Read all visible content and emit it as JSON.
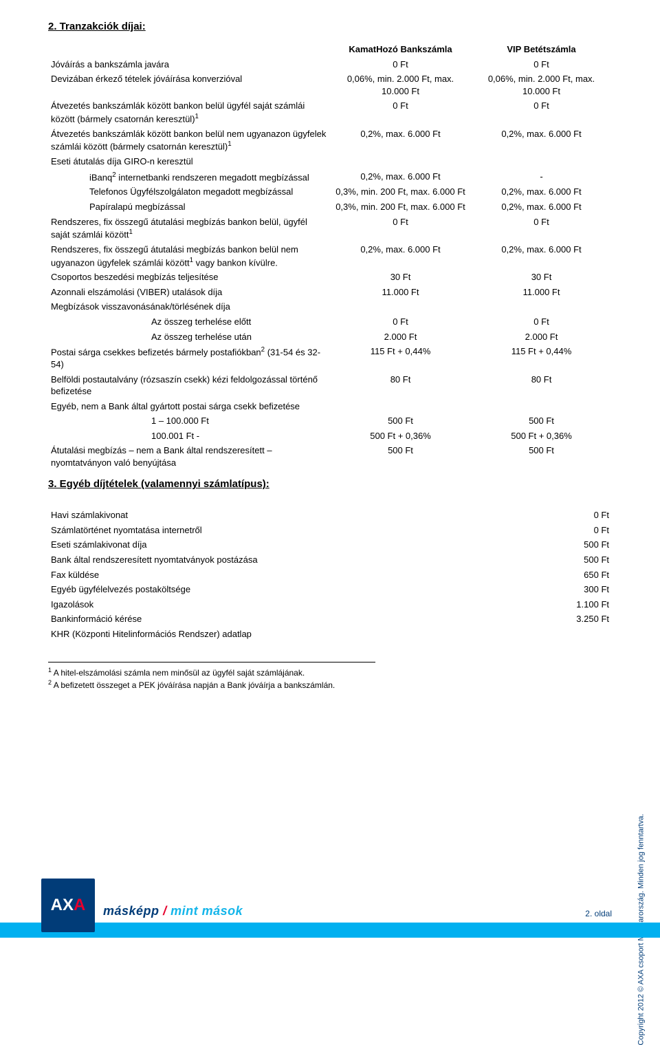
{
  "section2": {
    "title": "2. Tranzakciók díjai:",
    "headers": {
      "col2": "KamatHozó Bankszámla",
      "col3": "VIP Betétszámla"
    },
    "rows": [
      {
        "label": "Jóváírás a bankszámla javára",
        "c2": "0 Ft",
        "c3": "0 Ft"
      },
      {
        "label": "Devizában érkező tételek jóváírása konverzióval",
        "c2": "0,06%, min. 2.000 Ft, max. 10.000 Ft",
        "c3": "0,06%, min. 2.000 Ft, max. 10.000 Ft"
      },
      {
        "label_html": "Átvezetés bankszámlák között bankon belül ügyfél saját számlái között (bármely csatornán keresztül)<span class='sup'>1</span>",
        "c2": "0 Ft",
        "c3": "0 Ft"
      },
      {
        "label_html": "Átvezetés bankszámlák között bankon belül nem ugyanazon ügyfelek számlái között (bármely csatornán keresztül)<span class='sup'>1</span>",
        "c2": "0,2%, max. 6.000 Ft",
        "c3": "0,2%, max. 6.000 Ft"
      },
      {
        "label": "Eseti átutalás díja GIRO-n keresztül",
        "c2": "",
        "c3": ""
      },
      {
        "indent": 1,
        "label_html": "iBanq<span class='sup'>2</span> internetbanki rendszeren megadott megbízással",
        "c2": "0,2%, max. 6.000 Ft",
        "c3": "-"
      },
      {
        "indent": 1,
        "label": "Telefonos Ügyfélszolgálaton megadott megbízással",
        "c2": "0,3%, min. 200 Ft, max. 6.000 Ft",
        "c3": "0,2%, max. 6.000 Ft"
      },
      {
        "indent": 1,
        "label": "Papíralapú megbízással",
        "c2": "0,3%, min. 200 Ft, max. 6.000 Ft",
        "c3": "0,2%, max. 6.000 Ft"
      },
      {
        "label_html": "Rendszeres, fix összegű átutalási megbízás bankon belül, ügyfél saját számlái között<span class='sup'>1</span>",
        "c2": "0 Ft",
        "c3": "0 Ft"
      },
      {
        "label_html": "Rendszeres, fix összegű átutalási megbízás bankon belül nem ugyanazon ügyfelek számlái között<span class='sup'>1</span> vagy bankon kívülre.",
        "c2": "0,2%, max. 6.000 Ft",
        "c3": "0,2%, max. 6.000 Ft"
      },
      {
        "label": "Csoportos beszedési megbízás teljesítése",
        "c2": "30 Ft",
        "c3": "30 Ft"
      },
      {
        "label": "Azonnali elszámolási (VIBER) utalások díja",
        "c2": "11.000 Ft",
        "c3": "11.000 Ft"
      },
      {
        "label": "Megbízások visszavonásának/törlésének díja",
        "c2": "",
        "c3": ""
      },
      {
        "indent": 2,
        "label": "Az összeg terhelése előtt",
        "c2": "0 Ft",
        "c3": "0 Ft"
      },
      {
        "indent": 2,
        "label": "Az összeg terhelése után",
        "c2": "2.000 Ft",
        "c3": "2.000 Ft"
      },
      {
        "label_html": "Postai sárga csekkes befizetés bármely postafiókban<span class='sup'>2</span> (31-54 és 32-54)",
        "c2": "115 Ft + 0,44%",
        "c3": "115 Ft + 0,44%"
      },
      {
        "label": "Belföldi postautalvány (rózsaszín csekk) kézi feldolgozással történő befizetése",
        "c2": "80 Ft",
        "c3": "80 Ft"
      },
      {
        "label": "Egyéb, nem a Bank által gyártott postai sárga csekk befizetése",
        "c2": "",
        "c3": ""
      },
      {
        "indent": 2,
        "label": "1 – 100.000 Ft",
        "c2": "500 Ft",
        "c3": "500 Ft"
      },
      {
        "indent": 2,
        "label": "100.001 Ft -",
        "c2": "500 Ft + 0,36%",
        "c3": "500 Ft + 0,36%"
      },
      {
        "label": "Átutalási megbízás – nem a Bank által rendszeresített – nyomtatványon való benyújtása",
        "c2": "500 Ft",
        "c3": "500 Ft"
      }
    ]
  },
  "section3": {
    "title": "3. Egyéb díjtételek (valamennyi számlatípus):",
    "rows": [
      {
        "label": "Havi számlakivonat",
        "val": "0 Ft"
      },
      {
        "label": "Számlatörténet nyomtatása internetről",
        "val": "0 Ft"
      },
      {
        "label": "Eseti számlakivonat díja",
        "val": "500 Ft"
      },
      {
        "label": "Bank által rendszeresített nyomtatványok postázása",
        "val": "500 Ft"
      },
      {
        "label": "Fax küldése",
        "val": "650 Ft"
      },
      {
        "label": "Egyéb ügyfélelvezés postaköltsége",
        "val": "300 Ft"
      },
      {
        "label": "Igazolások",
        "val": "1.100 Ft"
      },
      {
        "label": "Bankinformáció kérése",
        "val": "3.250 Ft"
      },
      {
        "label": "KHR (Központi Hitelinformációs Rendszer) adatlap",
        "val": ""
      }
    ]
  },
  "footnotes": {
    "n1": "A hitel-elszámolási számla nem minősül az ügyfél saját számlájának.",
    "n2": "A befizetett összeget a PEK jóváírása napján a Bank jóváírja a bankszámlán."
  },
  "footer": {
    "logo_text": "AXA",
    "tagline_w1": "másképp",
    "tagline_slash": "/",
    "tagline_w2": "mint mások",
    "page": "2. oldal",
    "copyright": "Copyright 2012 © AXA csoport Magyarország. Minden jog fenntartva."
  },
  "colors": {
    "navy": "#013c78",
    "cyan": "#00b0f0",
    "lightblue": "#13b5ea",
    "red": "#e6002d",
    "text": "#000000",
    "bg": "#ffffff"
  }
}
